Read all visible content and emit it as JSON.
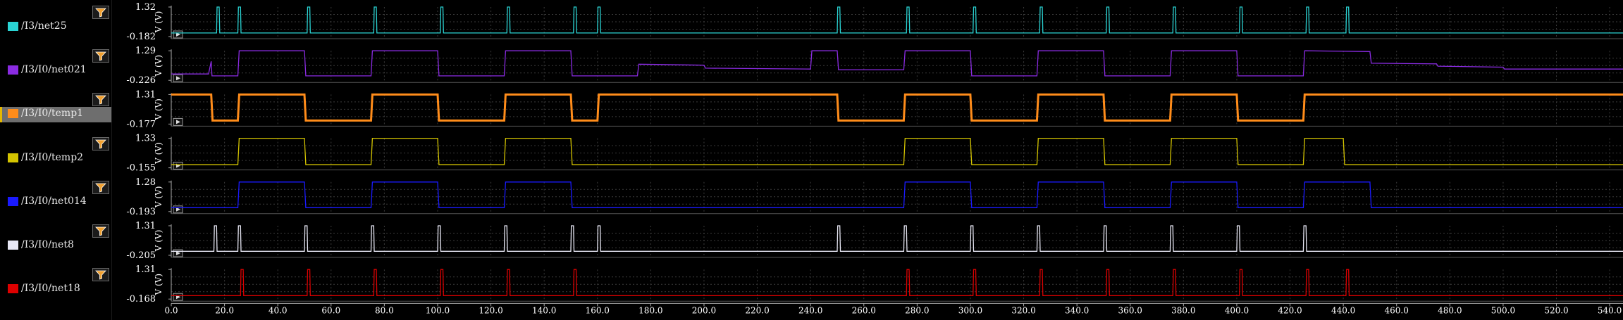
{
  "signals": [
    {
      "name": "/I3/net25",
      "color": "#2ad4d4",
      "ymax": "1.32",
      "ymin": "-0.182",
      "unit": "V (V)",
      "selected": false
    },
    {
      "name": "/I3/I0/net021",
      "color": "#8a2be2",
      "ymax": "1.29",
      "ymin": "-0.226",
      "unit": "V (V)",
      "selected": false
    },
    {
      "name": "/I3/I0/temp1",
      "color": "#ff8c1a",
      "ymax": "1.31",
      "ymin": "-0.177",
      "unit": "V (V)",
      "selected": true
    },
    {
      "name": "/I3/I0/temp2",
      "color": "#d4c400",
      "ymax": "1.33",
      "ymin": "-0.155",
      "unit": "V (V)",
      "selected": false
    },
    {
      "name": "/I3/I0/net014",
      "color": "#1a1aff",
      "ymax": "1.28",
      "ymin": "-0.193",
      "unit": "V (V)",
      "selected": false
    },
    {
      "name": "/I3/I0/net8",
      "color": "#e8e8f5",
      "ymax": "1.31",
      "ymin": "-0.205",
      "unit": "V (V)",
      "selected": false
    },
    {
      "name": "/I3/I0/net18",
      "color": "#dd0000",
      "ymax": "1.31",
      "ymin": "-0.168",
      "unit": "V (V)",
      "selected": false
    }
  ],
  "x_axis": {
    "ticks": [
      "0.0",
      "20.0",
      "40.0",
      "60.0",
      "80.0",
      "100.0",
      "120.0",
      "140.0",
      "160.0",
      "180.0",
      "200.0",
      "220.0",
      "240.0",
      "260.0",
      "280.0",
      "300.0",
      "320.0",
      "340.0",
      "360.0",
      "380.0",
      "400.0",
      "420.0",
      "440.0",
      "460.0",
      "480.0",
      "500.0",
      "520.0",
      "540.0"
    ],
    "range": [
      0,
      545
    ]
  },
  "chart_data": {
    "type": "line",
    "x_unit": "time",
    "xlim": [
      0,
      545
    ],
    "series": [
      {
        "name": "/I3/net25",
        "ylim": [
          -0.182,
          1.32
        ],
        "kind": "pulses",
        "pulses": [
          17,
          25,
          51,
          76,
          101,
          126,
          151,
          160,
          250,
          276,
          301,
          326,
          351,
          376,
          401,
          426,
          441
        ],
        "width": 1,
        "high": 1.32,
        "low": 0
      },
      {
        "name": "/I3/I0/net021",
        "ylim": [
          -0.226,
          1.29
        ],
        "points": [
          [
            0,
            0.1
          ],
          [
            14,
            0.1
          ],
          [
            15,
            0.75
          ],
          [
            15.3,
            0
          ],
          [
            25,
            0
          ],
          [
            25.5,
            1.29
          ],
          [
            50,
            1.29
          ],
          [
            50.5,
            0
          ],
          [
            75,
            0
          ],
          [
            75.5,
            1.29
          ],
          [
            100,
            1.29
          ],
          [
            100.5,
            0
          ],
          [
            125,
            0
          ],
          [
            125.5,
            1.29
          ],
          [
            150,
            1.29
          ],
          [
            150.5,
            0
          ],
          [
            175,
            0
          ],
          [
            175.5,
            0.6
          ],
          [
            200,
            0.55
          ],
          [
            200.5,
            0.4
          ],
          [
            240,
            0.35
          ],
          [
            240.5,
            1.29
          ],
          [
            250,
            1.29
          ],
          [
            250.5,
            0.32
          ],
          [
            275,
            0.32
          ],
          [
            275.5,
            1.29
          ],
          [
            300,
            1.29
          ],
          [
            300.5,
            0
          ],
          [
            325,
            0
          ],
          [
            325.5,
            1.29
          ],
          [
            350,
            1.29
          ],
          [
            350.5,
            0
          ],
          [
            375,
            0
          ],
          [
            375.5,
            1.29
          ],
          [
            400,
            1.29
          ],
          [
            400.5,
            0
          ],
          [
            425,
            0
          ],
          [
            425.5,
            1.29
          ],
          [
            450,
            1.25
          ],
          [
            450.5,
            0.65
          ],
          [
            475,
            0.62
          ],
          [
            475.5,
            0.5
          ],
          [
            500,
            0.45
          ],
          [
            500.5,
            0.35
          ],
          [
            545,
            0.35
          ]
        ]
      },
      {
        "name": "/I3/I0/temp1",
        "ylim": [
          -0.177,
          1.31
        ],
        "points": [
          [
            0,
            1.31
          ],
          [
            15,
            1.31
          ],
          [
            15.5,
            0
          ],
          [
            25,
            0
          ],
          [
            25.5,
            1.31
          ],
          [
            50,
            1.31
          ],
          [
            50.5,
            0
          ],
          [
            75,
            0
          ],
          [
            75.5,
            1.31
          ],
          [
            100,
            1.31
          ],
          [
            100.5,
            0
          ],
          [
            125,
            0
          ],
          [
            125.5,
            1.31
          ],
          [
            150,
            1.31
          ],
          [
            150.5,
            0
          ],
          [
            160,
            0
          ],
          [
            160.5,
            1.31
          ],
          [
            250,
            1.31
          ],
          [
            250.5,
            0
          ],
          [
            275,
            0
          ],
          [
            275.5,
            1.31
          ],
          [
            300,
            1.31
          ],
          [
            300.5,
            0
          ],
          [
            325,
            0
          ],
          [
            325.5,
            1.31
          ],
          [
            350,
            1.31
          ],
          [
            350.5,
            0
          ],
          [
            375,
            0
          ],
          [
            375.5,
            1.31
          ],
          [
            400,
            1.31
          ],
          [
            400.5,
            0
          ],
          [
            425,
            0
          ],
          [
            425.5,
            1.31
          ],
          [
            545,
            1.31
          ]
        ]
      },
      {
        "name": "/I3/I0/temp2",
        "ylim": [
          -0.155,
          1.33
        ],
        "points": [
          [
            0,
            0
          ],
          [
            25,
            0
          ],
          [
            25.5,
            1.33
          ],
          [
            50,
            1.33
          ],
          [
            50.5,
            0
          ],
          [
            75,
            0
          ],
          [
            75.5,
            1.33
          ],
          [
            100,
            1.33
          ],
          [
            100.5,
            0
          ],
          [
            125,
            0
          ],
          [
            125.5,
            1.33
          ],
          [
            150,
            1.33
          ],
          [
            150.5,
            0
          ],
          [
            275,
            0
          ],
          [
            275.5,
            1.33
          ],
          [
            300,
            1.33
          ],
          [
            300.5,
            0
          ],
          [
            325,
            0
          ],
          [
            325.5,
            1.33
          ],
          [
            350,
            1.33
          ],
          [
            350.5,
            0
          ],
          [
            375,
            0
          ],
          [
            375.5,
            1.33
          ],
          [
            400,
            1.33
          ],
          [
            400.5,
            0
          ],
          [
            425,
            0
          ],
          [
            425.5,
            1.33
          ],
          [
            440,
            1.33
          ],
          [
            440.5,
            0
          ],
          [
            545,
            0
          ]
        ]
      },
      {
        "name": "/I3/I0/net014",
        "ylim": [
          -0.193,
          1.28
        ],
        "points": [
          [
            0,
            0
          ],
          [
            25,
            0
          ],
          [
            25.5,
            1.28
          ],
          [
            50,
            1.28
          ],
          [
            50.5,
            0
          ],
          [
            75,
            0
          ],
          [
            75.5,
            1.28
          ],
          [
            100,
            1.28
          ],
          [
            100.5,
            0
          ],
          [
            125,
            0
          ],
          [
            125.5,
            1.28
          ],
          [
            150,
            1.28
          ],
          [
            150.5,
            0
          ],
          [
            275,
            0
          ],
          [
            275.5,
            1.28
          ],
          [
            300,
            1.28
          ],
          [
            300.5,
            0
          ],
          [
            325,
            0
          ],
          [
            325.5,
            1.28
          ],
          [
            350,
            1.28
          ],
          [
            350.5,
            0
          ],
          [
            375,
            0
          ],
          [
            375.5,
            1.28
          ],
          [
            400,
            1.28
          ],
          [
            400.5,
            0
          ],
          [
            425,
            0
          ],
          [
            425.5,
            1.28
          ],
          [
            450,
            1.28
          ],
          [
            450.5,
            0
          ],
          [
            545,
            0
          ]
        ]
      },
      {
        "name": "/I3/I0/net8",
        "ylim": [
          -0.205,
          1.31
        ],
        "kind": "pulses",
        "pulses": [
          16,
          25,
          50,
          75,
          100,
          125,
          150,
          160,
          250,
          275,
          300,
          325,
          350,
          375,
          400,
          425
        ],
        "width": 1,
        "high": 1.31,
        "low": 0
      },
      {
        "name": "/I3/I0/net18",
        "ylim": [
          -0.168,
          1.31
        ],
        "kind": "pulses",
        "pulses": [
          26,
          51,
          76,
          101,
          126,
          151,
          276,
          301,
          326,
          351,
          376,
          401,
          426,
          441
        ],
        "width": 1,
        "high": 1.31,
        "low": 0
      }
    ]
  }
}
